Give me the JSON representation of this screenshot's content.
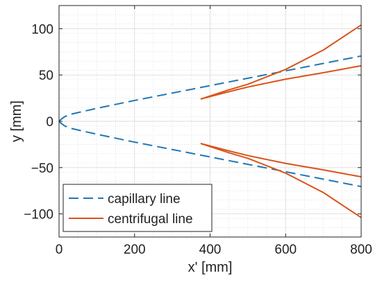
{
  "chart_data": {
    "type": "line",
    "title": "",
    "xlabel": "x' [mm]",
    "ylabel": "y [mm]",
    "xlim": [
      0,
      800
    ],
    "ylim": [
      -125,
      125
    ],
    "xticks": [
      0,
      200,
      400,
      600,
      800
    ],
    "yticks": [
      -100,
      -50,
      0,
      50,
      100
    ],
    "xtick_labels": [
      "0",
      "200",
      "400",
      "600",
      "800"
    ],
    "ytick_labels": [
      "−100",
      "−50",
      "0",
      "50",
      "100"
    ],
    "grid": true,
    "minor_grid": true,
    "legend_position": "bottom-left",
    "legend": [
      {
        "label": "capillary line",
        "style": "dashed",
        "color": "#1f77b4"
      },
      {
        "label": "centrifugal line",
        "style": "solid",
        "color": "#d95319"
      }
    ],
    "series": [
      {
        "name": "capillary line",
        "color": "#1f77b4",
        "style": "dashed",
        "segments": [
          {
            "points": [
              [
                0,
                0
              ],
              [
                5,
                2
              ],
              [
                15,
                5
              ],
              [
                30,
                7.5
              ],
              [
                100,
                14
              ],
              [
                200,
                22.5
              ],
              [
                300,
                30.5
              ],
              [
                400,
                38.5
              ],
              [
                500,
                46.5
              ],
              [
                600,
                54.5
              ],
              [
                700,
                62.5
              ],
              [
                800,
                70.5
              ]
            ]
          },
          {
            "points": [
              [
                0,
                0
              ],
              [
                5,
                -2
              ],
              [
                15,
                -5
              ],
              [
                30,
                -7.5
              ],
              [
                100,
                -14
              ],
              [
                200,
                -22.5
              ],
              [
                300,
                -30.5
              ],
              [
                400,
                -38.5
              ],
              [
                500,
                -46.5
              ],
              [
                600,
                -54.5
              ],
              [
                700,
                -62.5
              ],
              [
                800,
                -70.5
              ]
            ]
          }
        ]
      },
      {
        "name": "centrifugal line",
        "color": "#d95319",
        "style": "solid",
        "segments": [
          {
            "points": [
              [
                375,
                24
              ],
              [
                450,
                32
              ],
              [
                500,
                37
              ],
              [
                600,
                45.5
              ],
              [
                700,
                52.5
              ],
              [
                800,
                60
              ]
            ]
          },
          {
            "points": [
              [
                375,
                24
              ],
              [
                450,
                34
              ],
              [
                500,
                40
              ],
              [
                600,
                56
              ],
              [
                700,
                77
              ],
              [
                800,
                104
              ]
            ]
          },
          {
            "points": [
              [
                375,
                -24
              ],
              [
                450,
                -32
              ],
              [
                500,
                -37
              ],
              [
                600,
                -45.5
              ],
              [
                700,
                -52.5
              ],
              [
                800,
                -60
              ]
            ]
          },
          {
            "points": [
              [
                375,
                -24
              ],
              [
                450,
                -34
              ],
              [
                500,
                -40
              ],
              [
                600,
                -56
              ],
              [
                700,
                -77
              ],
              [
                800,
                -104
              ]
            ]
          }
        ]
      }
    ]
  }
}
